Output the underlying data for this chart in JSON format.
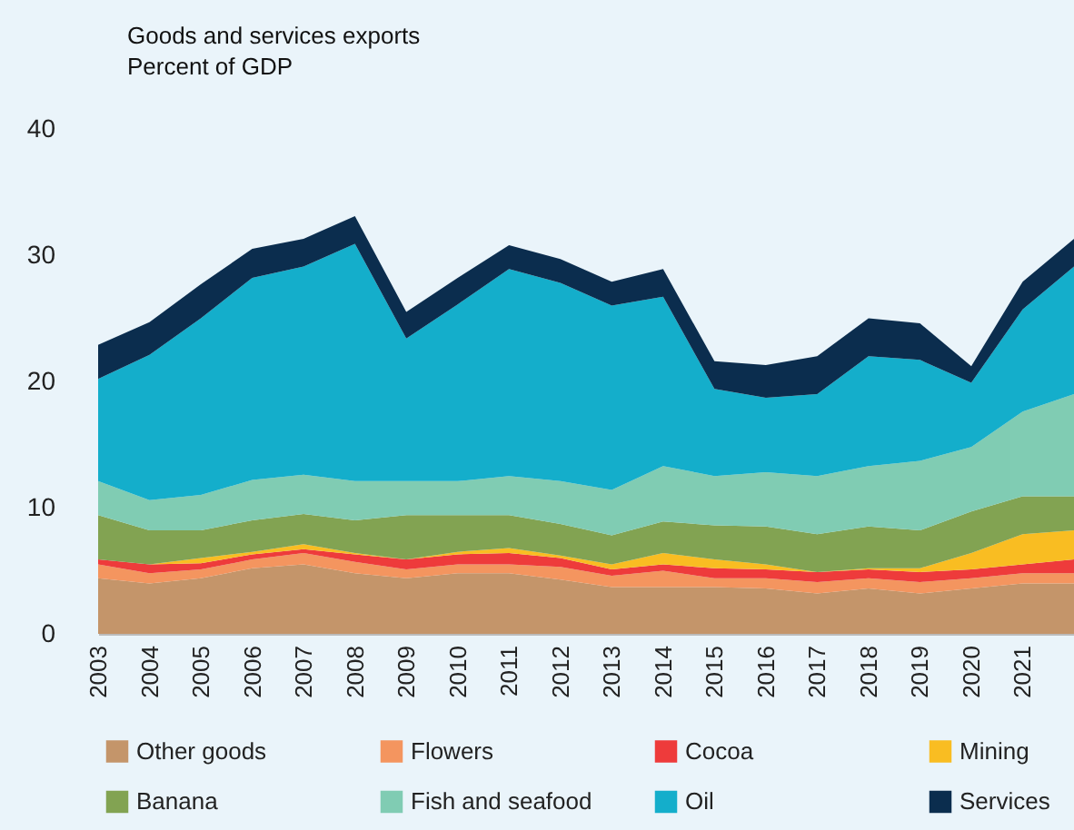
{
  "chart_data": {
    "type": "area",
    "title": "Goods and services exports",
    "subtitle": "Percent of GDP",
    "stacked": true,
    "legend": "bottom",
    "categories": [
      "2003",
      "2004",
      "2005",
      "2006",
      "2007",
      "2008",
      "2009",
      "2010",
      "2011",
      "2012",
      "2013",
      "2014",
      "2015",
      "2016",
      "2017",
      "2018",
      "2019",
      "2020",
      "2021",
      null
    ],
    "ylim": [
      0,
      40
    ],
    "yticks": [
      0,
      10,
      20,
      30,
      40
    ],
    "series": [
      {
        "name": "Other goods",
        "color": "#c4956a",
        "values": [
          4.4,
          4.0,
          4.4,
          5.2,
          5.5,
          4.8,
          4.4,
          4.8,
          4.8,
          4.3,
          3.7,
          3.7,
          3.7,
          3.6,
          3.2,
          3.6,
          3.2,
          3.6,
          4.0,
          4.0
        ]
      },
      {
        "name": "Flowers",
        "color": "#f4955f",
        "values": [
          1.1,
          0.8,
          0.7,
          0.7,
          0.9,
          0.9,
          0.7,
          0.7,
          0.7,
          1.0,
          0.9,
          1.3,
          0.7,
          0.8,
          0.9,
          0.8,
          0.9,
          0.8,
          0.8,
          0.8
        ]
      },
      {
        "name": "Cocoa",
        "color": "#ee3b3b",
        "values": [
          0.4,
          0.7,
          0.5,
          0.4,
          0.3,
          0.6,
          0.8,
          0.8,
          0.9,
          0.7,
          0.5,
          0.5,
          0.8,
          0.7,
          0.8,
          0.7,
          0.8,
          0.7,
          0.7,
          1.1
        ]
      },
      {
        "name": "Mining",
        "color": "#f9bd22",
        "values": [
          0,
          0,
          0.4,
          0.2,
          0.4,
          0.1,
          0,
          0.2,
          0.4,
          0.2,
          0.4,
          0.9,
          0.7,
          0.4,
          0,
          0.1,
          0.3,
          1.3,
          2.4,
          2.3
        ]
      },
      {
        "name": "Banana",
        "color": "#82a352",
        "values": [
          3.5,
          2.7,
          2.2,
          2.5,
          2.4,
          2.6,
          3.5,
          2.9,
          2.6,
          2.5,
          2.3,
          2.5,
          2.7,
          3.0,
          3.0,
          3.3,
          3.0,
          3.3,
          3.0,
          2.7
        ]
      },
      {
        "name": "Fish and seafood",
        "color": "#80ccb3",
        "values": [
          2.7,
          2.4,
          2.8,
          3.2,
          3.1,
          3.1,
          2.7,
          2.7,
          3.1,
          3.4,
          3.6,
          4.4,
          3.9,
          4.3,
          4.6,
          4.8,
          5.5,
          5.1,
          6.7,
          8.1
        ]
      },
      {
        "name": "Oil",
        "color": "#14aecb",
        "values": [
          8.1,
          11.5,
          14.0,
          16.0,
          16.5,
          18.8,
          11.3,
          14.0,
          16.4,
          15.7,
          14.6,
          13.4,
          6.9,
          5.9,
          6.5,
          8.7,
          8.0,
          5.1,
          8.1,
          10.1
        ]
      },
      {
        "name": "Services",
        "color": "#0b2d4e",
        "values": [
          2.7,
          2.6,
          2.7,
          2.3,
          2.2,
          2.2,
          2.1,
          2.1,
          1.9,
          1.9,
          1.9,
          2.2,
          2.2,
          2.6,
          3.0,
          3.0,
          2.9,
          1.3,
          2.2,
          2.2
        ]
      }
    ]
  }
}
